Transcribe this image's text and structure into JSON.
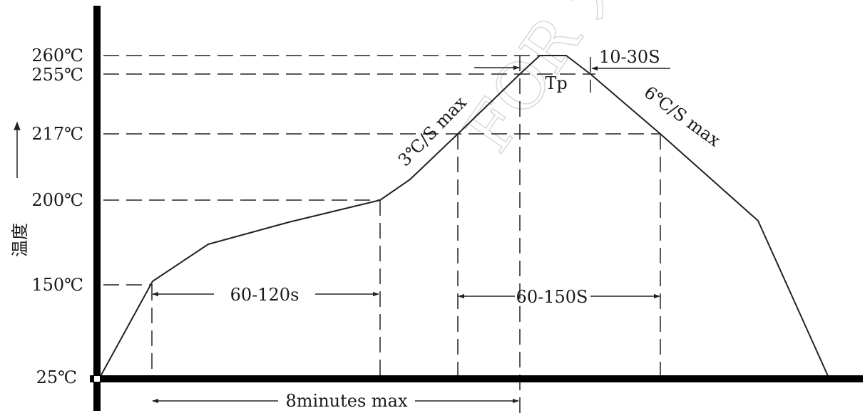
{
  "y_axis": {
    "label": "温度",
    "ticks": [
      "260℃",
      "255℃",
      "217℃",
      "200℃",
      "150℃",
      "25℃"
    ]
  },
  "annotations": {
    "preheat_time": "60-120s",
    "liquidus_time": "60-150S",
    "peak_time": "10-30S",
    "peak_label": "Tp",
    "ramp_up": "3℃/S max",
    "ramp_down": "6℃/S max",
    "total_time": "8minutes max"
  },
  "watermark": "FOR 大华"
}
